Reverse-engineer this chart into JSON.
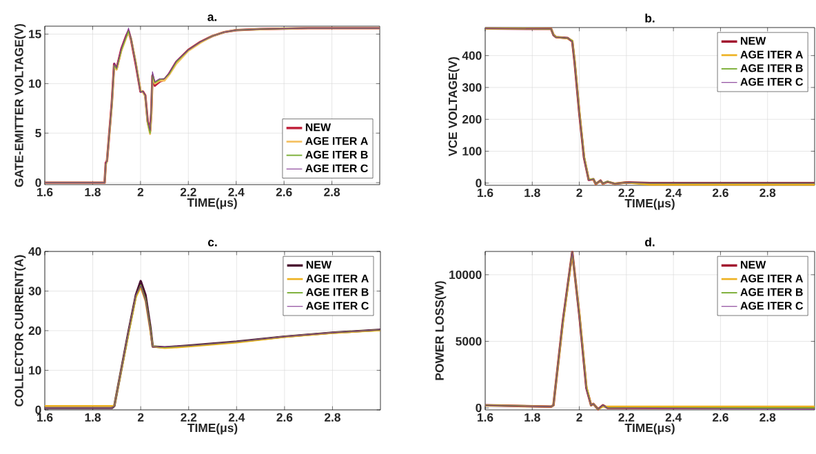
{
  "chart_data": [
    {
      "type": "line",
      "title": "a.",
      "xlabel": "TIME(μs)",
      "ylabel": "GATE-EMITTER VOLTAGE(V)",
      "xlim": [
        1.6,
        3.0
      ],
      "xticks": [
        1.6,
        1.8,
        2,
        2.2,
        2.4,
        2.6,
        2.8
      ],
      "ylim": [
        -0.2,
        15.8
      ],
      "yticks": [
        0,
        5,
        10,
        15
      ],
      "grid": true,
      "legend": "bottom right",
      "x": [
        1.6,
        1.85,
        1.855,
        1.86,
        1.88,
        1.89,
        1.9,
        1.92,
        1.94,
        1.95,
        1.96,
        1.98,
        2.0,
        2.01,
        2.02,
        2.03,
        2.04,
        2.045,
        2.05,
        2.06,
        2.08,
        2.1,
        2.12,
        2.15,
        2.2,
        2.25,
        2.3,
        2.35,
        2.4,
        2.5,
        2.7,
        3.0
      ],
      "series": [
        {
          "name": "NEW",
          "color": "#c0203a",
          "values": [
            0,
            0,
            2,
            2.2,
            8,
            12,
            11.5,
            13.5,
            14.8,
            15.3,
            14.5,
            12,
            9.2,
            9.2,
            8.8,
            6.2,
            5.2,
            7,
            10.8,
            9.8,
            10.2,
            10.4,
            11,
            12.2,
            13.4,
            14.2,
            14.8,
            15.2,
            15.4,
            15.5,
            15.6,
            15.6
          ]
        },
        {
          "name": "AGE ITER A",
          "color": "#f5c060",
          "values": [
            0,
            0,
            1.8,
            2.2,
            7.8,
            11.8,
            11.4,
            13.3,
            14.6,
            15.2,
            14.6,
            12.2,
            9.3,
            9.1,
            8.7,
            6,
            4.9,
            6.8,
            10.6,
            10,
            10.3,
            10.3,
            10.9,
            12,
            13.3,
            14.1,
            14.8,
            15.2,
            15.4,
            15.5,
            15.6,
            15.6
          ]
        },
        {
          "name": "AGE ITER B",
          "color": "#77ac30",
          "values": [
            0,
            0,
            1.9,
            2.2,
            7.9,
            11.9,
            11.5,
            13.4,
            14.7,
            15.3,
            14.6,
            12.1,
            9.2,
            9.2,
            8.8,
            6.1,
            5,
            7.2,
            10.9,
            10.1,
            10.4,
            10.5,
            11,
            12.2,
            13.4,
            14.2,
            14.8,
            15.2,
            15.4,
            15.5,
            15.6,
            15.6
          ]
        },
        {
          "name": "AGE ITER C",
          "color": "#7e2f8e",
          "values": [
            0,
            0,
            2,
            2.2,
            8.1,
            12.1,
            11.6,
            13.6,
            14.9,
            15.6,
            14.6,
            12,
            9.1,
            9.2,
            8.8,
            6.3,
            5.3,
            7.5,
            11.2,
            10.2,
            10.5,
            10.5,
            11.1,
            12.3,
            13.4,
            14.2,
            14.8,
            15.2,
            15.4,
            15.5,
            15.6,
            15.6
          ]
        }
      ]
    },
    {
      "type": "line",
      "title": "b.",
      "xlabel": "TIME(μs)",
      "ylabel": "VCE VOLTAGE(V)",
      "xlim": [
        1.6,
        3.0
      ],
      "xticks": [
        1.6,
        1.8,
        2,
        2.2,
        2.4,
        2.6,
        2.8
      ],
      "ylim": [
        -7,
        488
      ],
      "yticks": [
        0,
        100,
        200,
        300,
        400
      ],
      "grid": true,
      "legend": "top right",
      "x": [
        1.6,
        1.88,
        1.89,
        1.9,
        1.95,
        1.97,
        1.98,
        2.0,
        2.02,
        2.04,
        2.06,
        2.07,
        2.09,
        2.1,
        2.12,
        2.15,
        2.2,
        2.3,
        3.0
      ],
      "series": [
        {
          "name": "NEW",
          "color": "#a2142f",
          "values": [
            485,
            484,
            465,
            458,
            455,
            445,
            380,
            220,
            80,
            10,
            12,
            -3,
            8,
            -2,
            4,
            -2,
            2,
            0,
            0
          ]
        },
        {
          "name": "AGE ITER A",
          "color": "#edb120",
          "values": [
            485,
            484,
            466,
            458,
            454,
            447,
            385,
            225,
            84,
            11,
            12,
            -3,
            8,
            -2,
            4,
            -2,
            2,
            -5,
            -5
          ]
        },
        {
          "name": "AGE ITER B",
          "color": "#77ac30",
          "values": [
            485,
            484,
            465,
            458,
            455,
            446,
            382,
            222,
            82,
            10,
            13,
            -2,
            8,
            -1,
            5,
            -2,
            2,
            0,
            0
          ]
        },
        {
          "name": "AGE ITER C",
          "color": "#7e2f8e",
          "values": [
            485,
            484,
            464,
            457,
            455,
            444,
            378,
            218,
            78,
            9,
            12,
            -3,
            9,
            -2,
            4,
            -2,
            2,
            0,
            0
          ]
        }
      ]
    },
    {
      "type": "line",
      "title": "c.",
      "xlabel": "TIME(μs)",
      "ylabel": "COLLECTOR CURRENT(A)",
      "xlim": [
        1.6,
        3.0
      ],
      "xticks": [
        1.6,
        1.8,
        2,
        2.2,
        2.4,
        2.6,
        2.8
      ],
      "ylim": [
        0,
        40
      ],
      "yticks": [
        0,
        10,
        20,
        30,
        40
      ],
      "grid": true,
      "legend": "top right",
      "x": [
        1.6,
        1.88,
        1.89,
        1.95,
        1.98,
        2.0,
        2.02,
        2.04,
        2.05,
        2.1,
        2.2,
        2.4,
        2.6,
        2.8,
        3.0
      ],
      "series": [
        {
          "name": "NEW",
          "color": "#4a1030",
          "values": [
            0.5,
            0.5,
            1,
            20,
            29,
            32.5,
            29,
            21,
            16,
            15.8,
            16.2,
            17.2,
            18.5,
            19.5,
            20.2
          ]
        },
        {
          "name": "AGE ITER A",
          "color": "#edb120",
          "values": [
            1,
            1,
            1,
            19.5,
            28.5,
            31,
            27.5,
            20,
            16,
            15.6,
            16,
            17,
            18.4,
            19.4,
            20.1
          ]
        },
        {
          "name": "AGE ITER B",
          "color": "#77ac30",
          "values": [
            0.5,
            0.5,
            1,
            19.8,
            28.8,
            31.5,
            28,
            20.5,
            16,
            15.8,
            16.2,
            17.2,
            18.5,
            19.5,
            20.2
          ]
        },
        {
          "name": "AGE ITER C",
          "color": "#7e2f8e",
          "values": [
            0.5,
            0.5,
            1,
            20,
            29,
            31.3,
            27.5,
            20,
            15.9,
            15.9,
            16.2,
            17.2,
            18.5,
            19.5,
            20.2
          ]
        }
      ]
    },
    {
      "type": "line",
      "title": "d.",
      "xlabel": "TIME(μs)",
      "ylabel": "POWER LOSS(W)",
      "xlim": [
        1.6,
        3.0
      ],
      "xticks": [
        1.6,
        1.8,
        2,
        2.2,
        2.4,
        2.6,
        2.8
      ],
      "ylim": [
        -150,
        11750
      ],
      "yticks": [
        0,
        5000,
        10000
      ],
      "grid": true,
      "legend": "top right",
      "x": [
        1.6,
        1.88,
        1.89,
        1.93,
        1.97,
        2.0,
        2.03,
        2.05,
        2.06,
        2.08,
        2.1,
        2.12,
        3.0
      ],
      "series": [
        {
          "name": "NEW",
          "color": "#a2142f",
          "values": [
            200,
            100,
            200,
            6500,
            11700,
            7000,
            1500,
            200,
            300,
            -100,
            200,
            0,
            0
          ]
        },
        {
          "name": "AGE ITER A",
          "color": "#edb120",
          "values": [
            200,
            100,
            200,
            6400,
            11600,
            7100,
            1600,
            200,
            300,
            -100,
            100,
            100,
            100
          ]
        },
        {
          "name": "AGE ITER B",
          "color": "#77ac30",
          "values": [
            200,
            100,
            200,
            6500,
            11700,
            7000,
            1500,
            200,
            300,
            -100,
            200,
            0,
            0
          ]
        },
        {
          "name": "AGE ITER C",
          "color": "#7e2f8e",
          "values": [
            200,
            100,
            200,
            6600,
            11700,
            6900,
            1400,
            200,
            300,
            -100,
            200,
            0,
            -100
          ]
        }
      ]
    }
  ]
}
